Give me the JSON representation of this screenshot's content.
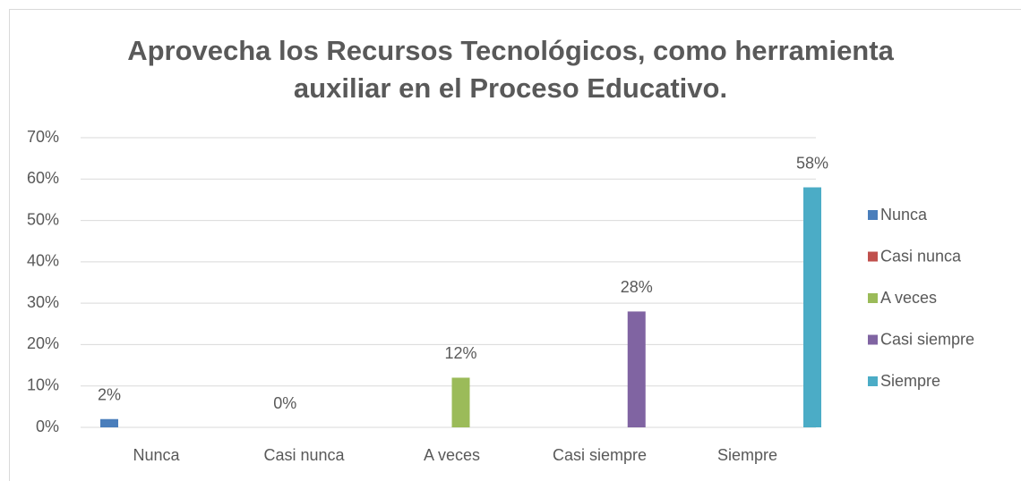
{
  "chart_data": {
    "type": "bar",
    "title": "Aprovecha los Recursos Tecnológicos, como herramienta auxiliar en el Proceso Educativo.",
    "categories": [
      "Nunca",
      "Casi nunca",
      "A veces",
      "Casi siempre",
      "Siempre"
    ],
    "series": [
      {
        "name": "Nunca",
        "color": "#4a7ebb",
        "values": [
          2,
          null,
          null,
          null,
          null
        ],
        "value_labels": [
          "2%",
          null,
          null,
          null,
          null
        ]
      },
      {
        "name": "Casi nunca",
        "color": "#c0504d",
        "values": [
          null,
          0,
          null,
          null,
          null
        ],
        "value_labels": [
          null,
          "0%",
          null,
          null,
          null
        ]
      },
      {
        "name": "A veces",
        "color": "#9bbb59",
        "values": [
          null,
          null,
          12,
          null,
          null
        ],
        "value_labels": [
          null,
          null,
          "12%",
          null,
          null
        ]
      },
      {
        "name": "Casi siempre",
        "color": "#8064a2",
        "values": [
          null,
          null,
          null,
          28,
          null
        ],
        "value_labels": [
          null,
          null,
          null,
          "28%",
          null
        ]
      },
      {
        "name": "Siempre",
        "color": "#4bacc6",
        "values": [
          null,
          null,
          null,
          null,
          58
        ],
        "value_labels": [
          null,
          null,
          null,
          null,
          "58%"
        ]
      }
    ],
    "ylim": [
      0,
      70
    ],
    "yticks": [
      {
        "value": 0,
        "label": "0%"
      },
      {
        "value": 10,
        "label": "10%"
      },
      {
        "value": 20,
        "label": "20%"
      },
      {
        "value": 30,
        "label": "30%"
      },
      {
        "value": 40,
        "label": "40%"
      },
      {
        "value": 50,
        "label": "50%"
      },
      {
        "value": 60,
        "label": "60%"
      },
      {
        "value": 70,
        "label": "70%"
      }
    ],
    "grid": true,
    "legend": "right"
  }
}
